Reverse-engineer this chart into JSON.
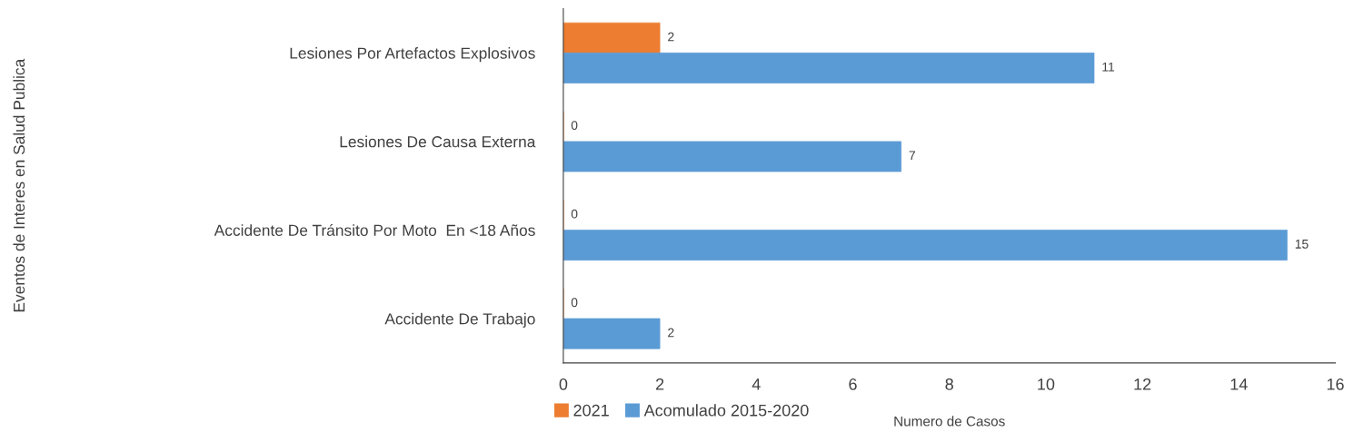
{
  "chart_data": {
    "type": "bar",
    "orientation": "horizontal",
    "categories": [
      "Lesiones Por Artefactos Explosivos",
      "Lesiones De Causa Externa",
      "Accidente De Tránsito Por Moto  En <18 Años",
      "Accidente De Trabajo"
    ],
    "series": [
      {
        "name": "2021",
        "color": "#ed7d31",
        "values": [
          2,
          0,
          0,
          0
        ]
      },
      {
        "name": "Acomulado 2015-2020",
        "color": "#5b9bd5",
        "values": [
          11,
          7,
          15,
          2
        ]
      }
    ],
    "xlim": [
      0,
      16
    ],
    "xticks": [
      0,
      2,
      4,
      6,
      8,
      10,
      12,
      14,
      16
    ],
    "xlabel": "Numero de Casos",
    "annotations": [
      "Eventos de Interes en Salud Publica"
    ],
    "data_labels": true,
    "grid": false,
    "legend": "bottom"
  }
}
